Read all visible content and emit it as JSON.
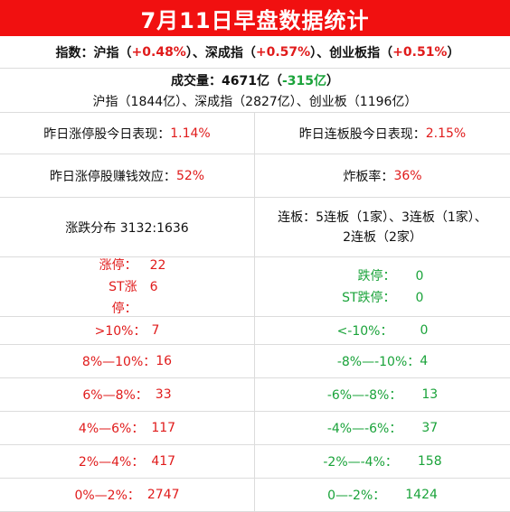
{
  "title": "7月11日早盘数据统计",
  "indices": {
    "label": "指数：",
    "sh_name": "沪指",
    "sh_val": "+0.48%",
    "sz_name": "深成指",
    "sz_val": "+0.57%",
    "cy_name": "创业板指",
    "cy_val": "+0.51%"
  },
  "volume": {
    "label": "成交量：",
    "total": "4671亿",
    "change": "-315亿",
    "detail": "沪指（1844亿）、深成指（2827亿）、创业板（1196亿）"
  },
  "stats": {
    "zt_today_label": "昨日涨停股今日表现：",
    "zt_today_val": "1.14%",
    "lb_today_label": "昨日连板股今日表现：",
    "lb_today_val": "2.15%",
    "zt_effect_label": "昨日涨停股赚钱效应：",
    "zt_effect_val": "52%",
    "zhaban_label": "炸板率：",
    "zhaban_val": "36%",
    "dist_label": "涨跌分布 3132:1636",
    "lianban_line1": "连板：5连板（1家）、3连板（1家）、",
    "lianban_line2": "2连板（2家）"
  },
  "limit": {
    "up_label": "涨停：",
    "up_val": "22",
    "st_up_label": "ST涨停：",
    "st_up_val": "6",
    "down_label": "跌停：",
    "down_val": "0",
    "st_down_label": "ST跌停：",
    "st_down_val": "0"
  },
  "ranges": [
    {
      "up_label": ">10%：",
      "up_val": "7",
      "down_label": "<-10%：",
      "down_val": "0"
    },
    {
      "up_label": "8%—10%：",
      "up_val": "16",
      "down_label": "-8%—-10%：",
      "down_val": "4"
    },
    {
      "up_label": "6%—8%：",
      "up_val": "33",
      "down_label": "-6%—-8%：",
      "down_val": "13"
    },
    {
      "up_label": "4%—6%：",
      "up_val": "117",
      "down_label": "-4%—-6%：",
      "down_val": "37"
    },
    {
      "up_label": "2%—4%：",
      "up_val": "417",
      "down_label": "-2%—-4%：",
      "down_val": "158"
    },
    {
      "up_label": "0%—2%：",
      "up_val": "2747",
      "down_label": "0—-2%：",
      "down_val": "1424"
    }
  ],
  "colors": {
    "header_bg": "#f11010",
    "up": "#e01b1b",
    "down": "#1aa33a"
  }
}
